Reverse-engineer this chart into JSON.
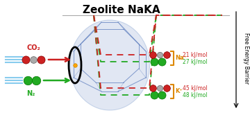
{
  "title": "Zeolite NaKA",
  "title_fontsize": 11,
  "title_fontweight": "bold",
  "background_color": "#ffffff",
  "green_color": "#22aa22",
  "red_color": "#cc2222",
  "orange_color": "#dd8800",
  "gray_color": "#999999",
  "light_blue_line": "#88ccee",
  "ylabel": "Free Energy Barrier",
  "ylabel_fontsize": 5.5,
  "labels_K": [
    "48 kJ/mol",
    "45 kJ/mol"
  ],
  "labels_Na": [
    "27 kJ/mol",
    "21 kJ/mol"
  ],
  "labels_K_colors": [
    "#22aa22",
    "#cc2222"
  ],
  "labels_Na_colors": [
    "#22aa22",
    "#cc2222"
  ],
  "K_label": "K⁺",
  "Na_label": "Na⁺",
  "n2_label": "N₂",
  "co2_label": "CO₂",
  "figsize": [
    3.6,
    1.89
  ],
  "dpi": 100
}
